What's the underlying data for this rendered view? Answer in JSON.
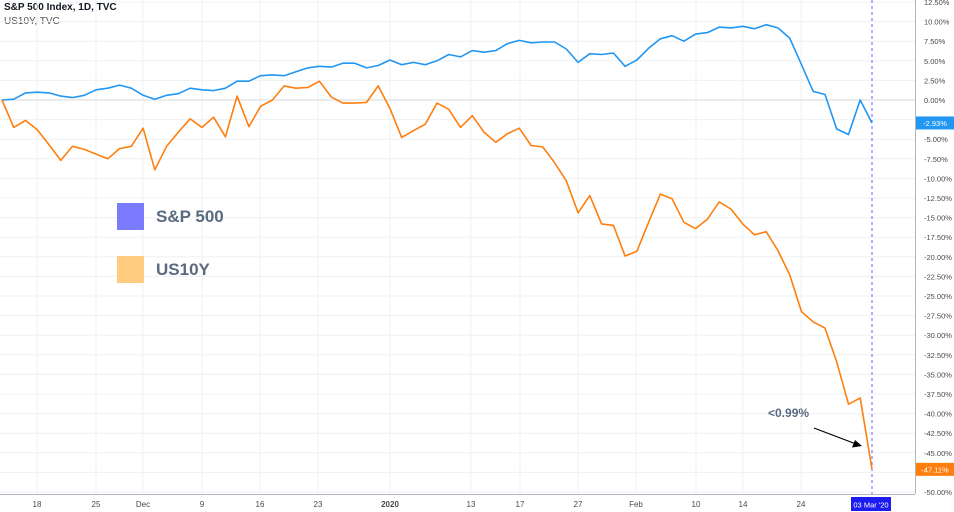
{
  "header": {
    "line1": "S&P 500 Index, 1D, TVC",
    "line2": "US10Y, TVC"
  },
  "legend": [
    {
      "label": "S&P 500",
      "color": "#7b7bff"
    },
    {
      "label": "US10Y",
      "color": "#ffcc80"
    }
  ],
  "annotation": "<0.99%",
  "chart_data": {
    "type": "line",
    "y_axis_ticks": [
      "12.50%",
      "10.00%",
      "7.50%",
      "5.00%",
      "2.50%",
      "0.00%",
      "-2.50%",
      "-5.00%",
      "-7.50%",
      "-10.00%",
      "-12.50%",
      "-15.00%",
      "-17.50%",
      "-20.00%",
      "-22.50%",
      "-25.00%",
      "-27.50%",
      "-30.00%",
      "-32.50%",
      "-35.00%",
      "-37.50%",
      "-40.00%",
      "-42.50%",
      "-45.00%",
      "-47.50%",
      "-50.00%"
    ],
    "ylim": [
      -50,
      12.5
    ],
    "x_axis_ticks": [
      "18",
      "25",
      "Dec",
      "9",
      "16",
      "23",
      "2020",
      "13",
      "17",
      "27",
      "Feb",
      "10",
      "14",
      "24"
    ],
    "x_axis_bold_tick": "2020",
    "crosshair_date": "03 Mar '20",
    "last_values": [
      {
        "series": "S&P 500",
        "label": "-2.93%",
        "value": -2.93,
        "color": "#2196f3"
      },
      {
        "series": "US10Y",
        "label": "-47.11%",
        "value": -47.11,
        "color": "#ff7f0e"
      }
    ],
    "series": [
      {
        "color": "#2196f3",
        "values": [
          0,
          0.1,
          0.9,
          1,
          0.9,
          0.5,
          0.3,
          0.6,
          1.3,
          1.5,
          1.9,
          1.5,
          0.6,
          0.1,
          0.6,
          0.8,
          1.5,
          1.3,
          1.2,
          1.5,
          2.4,
          2.4,
          3.1,
          3.2,
          3.1,
          3.6,
          4.1,
          4.3,
          4.2,
          4.7,
          4.7,
          4.1,
          4.4,
          5.1,
          4.5,
          4.8,
          4.5,
          5,
          5.8,
          5.5,
          6.3,
          6.1,
          6.3,
          7.2,
          7.6,
          7.3,
          7.4,
          7.4,
          6.5,
          4.8,
          5.9,
          5.8,
          6,
          4.3,
          5.1,
          6.6,
          7.8,
          8.2,
          7.5,
          8.4,
          8.6,
          9.3,
          9.2,
          9.4,
          9.1,
          9.6,
          9.2,
          7.9,
          4.5,
          1.1,
          0.7,
          -3.7,
          -4.4,
          0,
          -2.93
        ]
      },
      {
        "color": "#ff7f0e",
        "values": [
          0,
          -3.5,
          -2.6,
          -3.8,
          -5.7,
          -7.7,
          -5.9,
          -6.3,
          -6.9,
          -7.5,
          -6.2,
          -5.9,
          -3.6,
          -8.9,
          -5.9,
          -4.1,
          -2.4,
          -3.5,
          -2.2,
          -4.7,
          0.5,
          -3.4,
          -0.8,
          0,
          1.8,
          1.5,
          1.6,
          2.4,
          0.4,
          -0.4,
          -0.4,
          -0.3,
          1.8,
          -1.1,
          -4.8,
          -3.9,
          -3.1,
          -0.4,
          -1.2,
          -3.5,
          -2,
          -4.1,
          -5.4,
          -4.3,
          -3.6,
          -5.8,
          -6,
          -8,
          -10.3,
          -14.4,
          -12.2,
          -15.8,
          -16,
          -19.9,
          -19.3,
          -15.6,
          -12,
          -12.6,
          -15.6,
          -16.4,
          -15.2,
          -13,
          -13.9,
          -15.8,
          -17.2,
          -16.8,
          -19.2,
          -22.3,
          -27,
          -28.3,
          -29.1,
          -33.4,
          -38.8,
          -38,
          -47.11
        ]
      }
    ]
  }
}
